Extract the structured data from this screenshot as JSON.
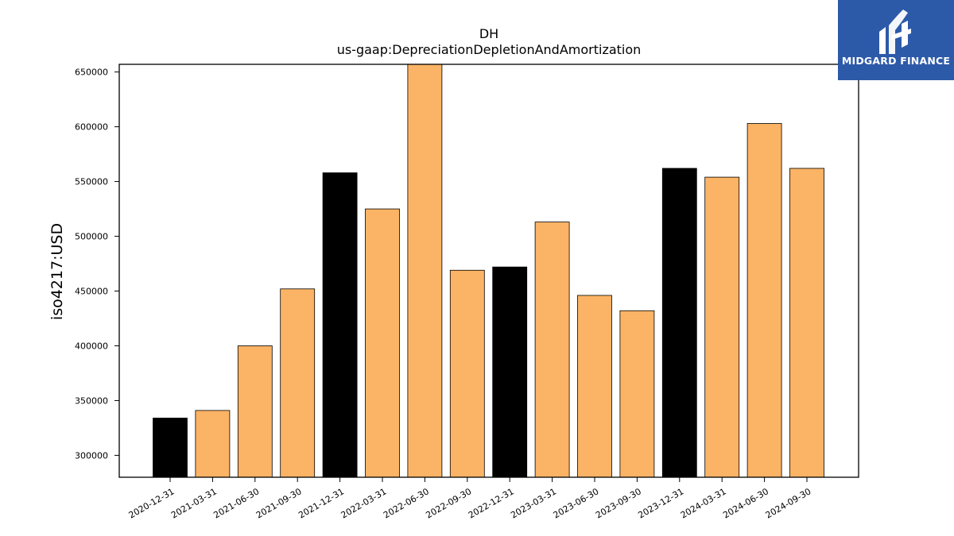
{
  "logo": {
    "text": "MIDGARD FINANCE",
    "background": "#2d5aa8"
  },
  "chart_data": {
    "type": "bar",
    "title": "DH",
    "subtitle": "us-gaap:DepreciationDepletionAndAmortization",
    "xlabel": "",
    "ylabel": "iso4217:USD",
    "ylim": [
      280000,
      657000
    ],
    "yticks": [
      300000,
      350000,
      400000,
      450000,
      500000,
      550000,
      600000,
      650000
    ],
    "grid": false,
    "legend": "none",
    "categories": [
      "2020-12-31",
      "2021-03-31",
      "2021-06-30",
      "2021-09-30",
      "2021-12-31",
      "2022-03-31",
      "2022-06-30",
      "2022-09-30",
      "2022-12-31",
      "2023-03-31",
      "2023-06-30",
      "2023-09-30",
      "2023-12-31",
      "2024-03-31",
      "2024-06-30",
      "2024-09-30"
    ],
    "values": [
      334000,
      341000,
      400000,
      452000,
      558000,
      525000,
      659000,
      469000,
      472000,
      513000,
      446000,
      432000,
      562000,
      554000,
      603000,
      562000
    ],
    "highlighted": [
      true,
      false,
      false,
      false,
      true,
      false,
      false,
      false,
      true,
      false,
      false,
      false,
      true,
      false,
      false,
      false
    ],
    "colors": {
      "highlight": "#000000",
      "default": "#fbb365",
      "edge": "#000000"
    }
  }
}
